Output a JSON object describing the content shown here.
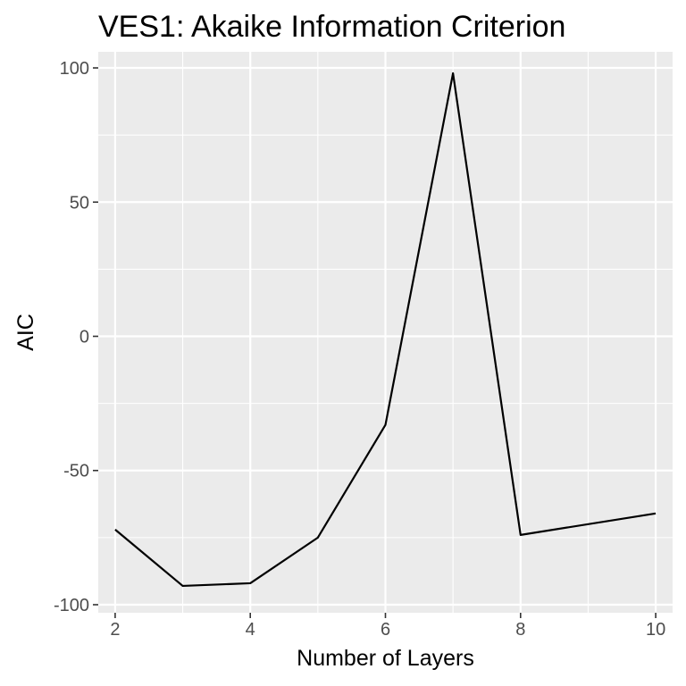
{
  "chart_data": {
    "type": "line",
    "title": "VES1: Akaike Information Criterion",
    "xlabel": "Number of Layers",
    "ylabel": "AIC",
    "x": [
      2,
      3,
      4,
      5,
      6,
      7,
      8,
      10
    ],
    "series": [
      {
        "values": [
          -72,
          -93,
          -92,
          -75,
          -33,
          98,
          -74,
          -66
        ],
        "color": "#000000"
      }
    ],
    "xlim": [
      1.75,
      10.25
    ],
    "ylim": [
      -103,
      106
    ],
    "x_ticks": [
      2,
      4,
      6,
      8,
      10
    ],
    "x_tick_labels": [
      "2",
      "4",
      "6",
      "8",
      "10"
    ],
    "y_ticks": [
      -100,
      -50,
      0,
      50,
      100
    ],
    "y_tick_labels": [
      "-100",
      "-50",
      "0",
      "50",
      "100"
    ],
    "grid": true,
    "panel_background": "#ebebeb",
    "grid_color": "#ffffff",
    "tick_color": "#333333",
    "tick_label_color": "#4d4d4d"
  }
}
